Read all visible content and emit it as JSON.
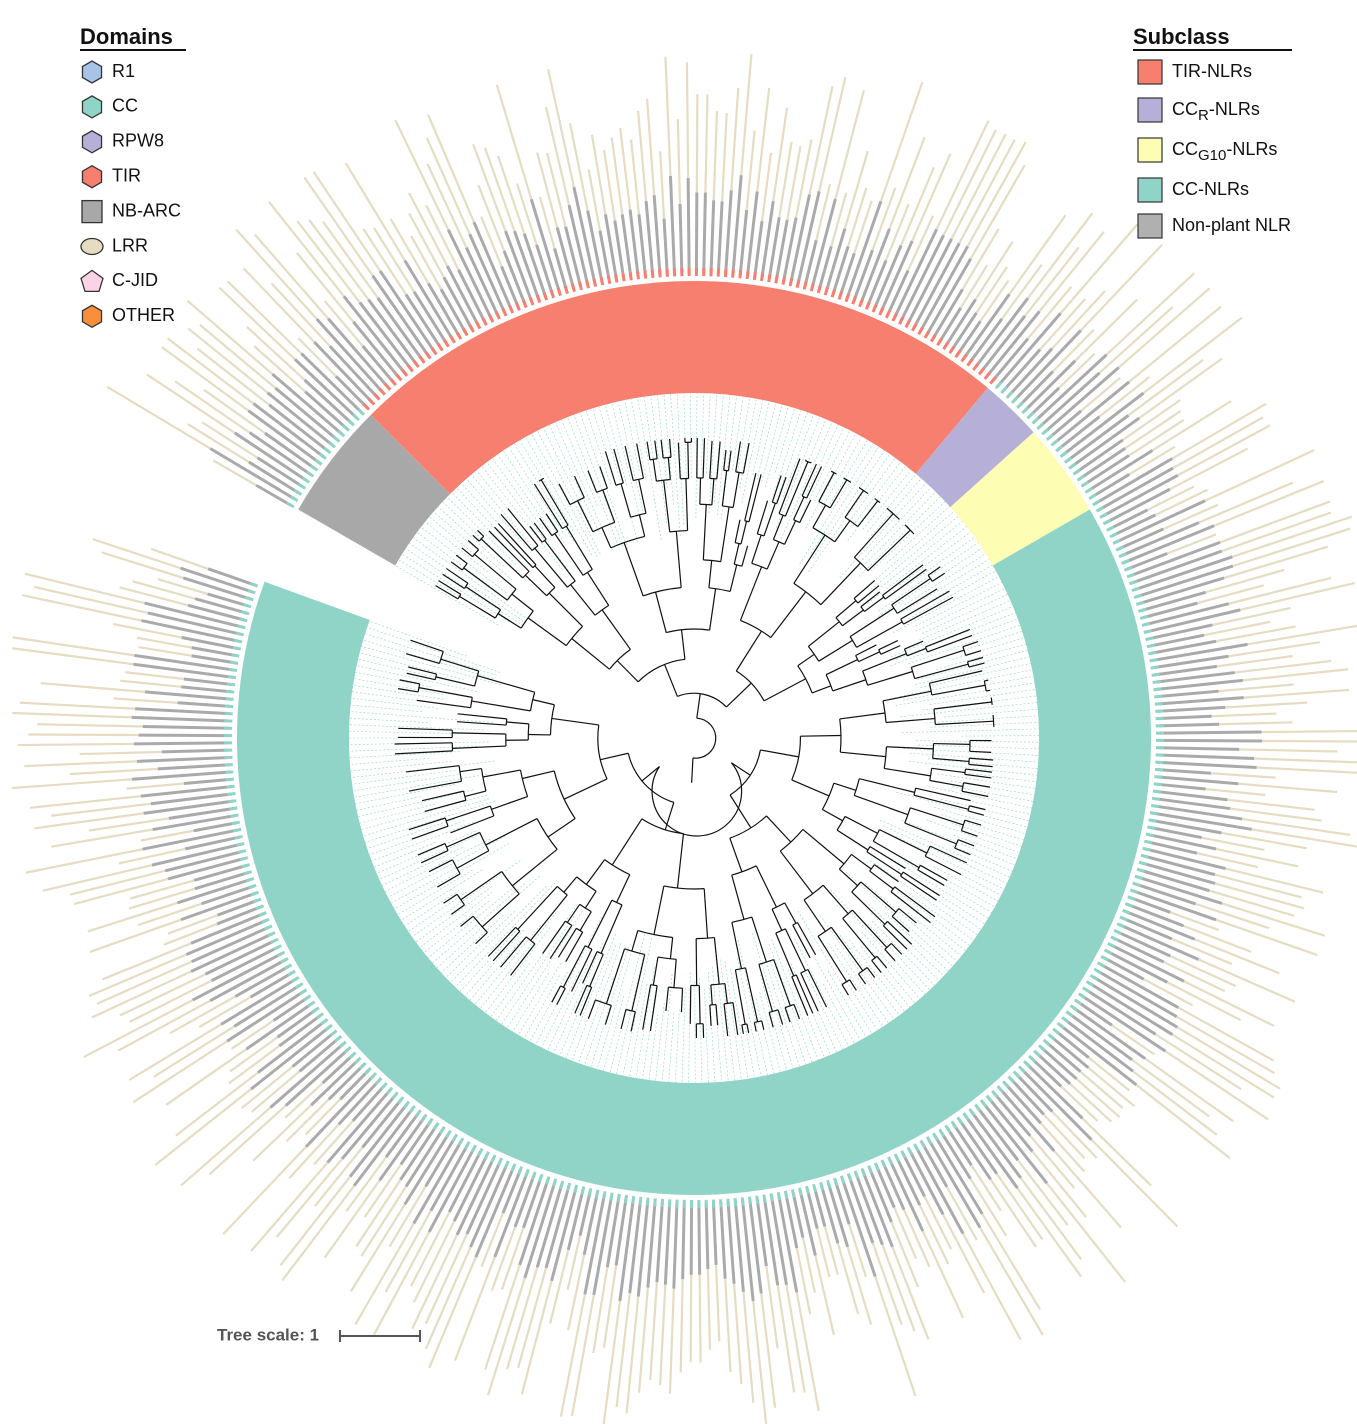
{
  "legend_domains": {
    "title": "Domains",
    "items": [
      "R1",
      "CC",
      "RPW8",
      "TIR",
      "NB-ARC",
      "LRR",
      "C-JID",
      "OTHER"
    ]
  },
  "legend_subclass": {
    "title": "Subclass",
    "items": [
      {
        "prefix": "TIR-NLRs"
      },
      {
        "prefix": "CC",
        "sub": "R",
        "suffix": "-NLRs"
      },
      {
        "prefix": "CC",
        "sub": "G10",
        "suffix": "-NLRs"
      },
      {
        "prefix": "CC-NLRs"
      },
      {
        "prefix": "Non-plant NLR"
      }
    ]
  },
  "tree_scale": {
    "label": "Tree scale: 1"
  }
}
